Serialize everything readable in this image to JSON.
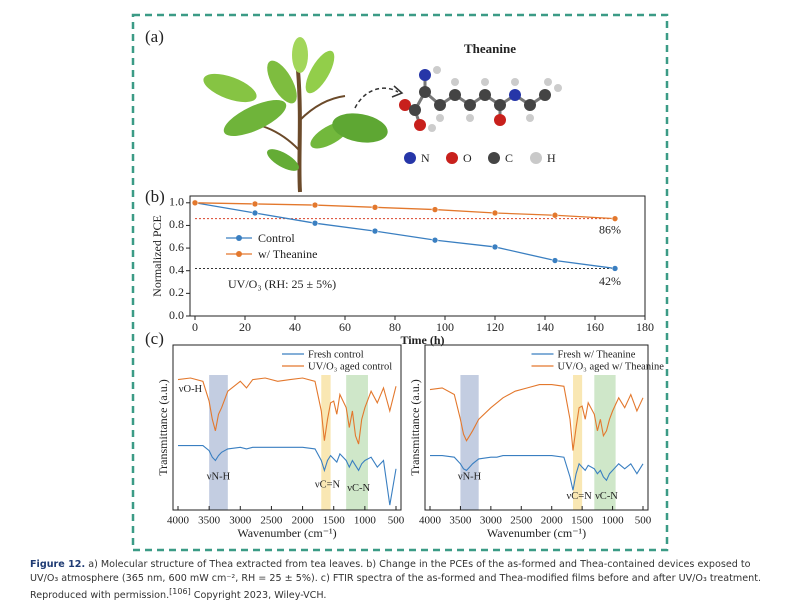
{
  "panel_a": {
    "label": "(a)",
    "molecule_title": "Theanine",
    "atom_legend": [
      {
        "symbol": "N",
        "color": "#2636a8"
      },
      {
        "symbol": "O",
        "color": "#c8201c"
      },
      {
        "symbol": "C",
        "color": "#444444"
      },
      {
        "symbol": "H",
        "color": "#c9c9c9"
      }
    ]
  },
  "chart_data": [
    {
      "type": "line",
      "panel_label": "(b)",
      "xlabel": "Time (h)",
      "ylabel": "Normalized PCE",
      "x": [
        0,
        24,
        48,
        72,
        96,
        120,
        144,
        168
      ],
      "series": [
        {
          "name": "Control",
          "color": "#3a7fc1",
          "values": [
            1.0,
            0.91,
            0.82,
            0.75,
            0.67,
            0.61,
            0.49,
            0.42
          ]
        },
        {
          "name": "w/ Theanine",
          "color": "#e3782d",
          "values": [
            1.0,
            0.99,
            0.98,
            0.96,
            0.94,
            0.91,
            0.89,
            0.86
          ]
        }
      ],
      "reference_lines": [
        {
          "value": 0.86,
          "label": "86%",
          "color": "#d9432b"
        },
        {
          "value": 0.42,
          "label": "42%",
          "color": "#333333"
        }
      ],
      "annotation": "UV/O₃ (RH: 25 ± 5%)",
      "xlim": [
        -2,
        180
      ],
      "xticks": [
        0,
        20,
        40,
        60,
        80,
        100,
        120,
        140,
        160,
        180
      ],
      "ylim": [
        0,
        1.06
      ],
      "yticks": [
        {
          "value": 0,
          "label": "0.0"
        },
        0.2,
        0.4,
        0.6,
        0.8,
        {
          "value": 1,
          "label": "1.0"
        }
      ]
    },
    {
      "type": "spectrum",
      "panel_label": "(c)",
      "xlabel": "Wavenumber (cm⁻¹)",
      "ylabel": "Transmittance (a.u.)",
      "x": [
        4000,
        3800,
        3600,
        3500,
        3450,
        3400,
        3350,
        3300,
        3200,
        3000,
        2900,
        2800,
        2600,
        2400,
        2200,
        2000,
        1800,
        1700,
        1650,
        1600,
        1550,
        1500,
        1450,
        1400,
        1300,
        1250,
        1200,
        1150,
        1100,
        1050,
        1000,
        900,
        800,
        700,
        600,
        500
      ],
      "series": [
        {
          "name": "Fresh control",
          "color": "#3a7fc1",
          "values": [
            0.39,
            0.39,
            0.39,
            0.36,
            0.32,
            0.3,
            0.33,
            0.35,
            0.37,
            0.38,
            0.37,
            0.38,
            0.38,
            0.38,
            0.38,
            0.38,
            0.37,
            0.3,
            0.24,
            0.3,
            0.33,
            0.31,
            0.29,
            0.34,
            0.3,
            0.26,
            0.3,
            0.27,
            0.24,
            0.28,
            0.3,
            0.32,
            0.26,
            0.3,
            0.03,
            0.25
          ]
        },
        {
          "name": "UV/O₃ aged control",
          "color": "#e3782d",
          "values": [
            0.79,
            0.8,
            0.78,
            0.66,
            0.55,
            0.48,
            0.58,
            0.62,
            0.72,
            0.78,
            0.74,
            0.79,
            0.8,
            0.78,
            0.79,
            0.8,
            0.78,
            0.6,
            0.42,
            0.55,
            0.65,
            0.66,
            0.58,
            0.7,
            0.62,
            0.5,
            0.6,
            0.45,
            0.4,
            0.55,
            0.62,
            0.72,
            0.65,
            0.74,
            0.6,
            0.75
          ]
        }
      ],
      "bands": [
        {
          "from": 3500,
          "to": 3200,
          "color": "#b9c4dc"
        },
        {
          "from": 1700,
          "to": 1550,
          "color": "#f8e3a6"
        },
        {
          "from": 1300,
          "to": 950,
          "color": "#c7e3c0"
        }
      ],
      "annotations": [
        {
          "text": "νO-H",
          "x": 3800,
          "y": 0.73
        },
        {
          "text": "νN-H",
          "x": 3350,
          "y": 0.2
        },
        {
          "text": "νC=N",
          "x": 1600,
          "y": 0.15
        },
        {
          "text": "νC-N",
          "x": 1100,
          "y": 0.13
        }
      ],
      "xlim": [
        4000,
        500
      ],
      "xticks": [
        4000,
        3500,
        3000,
        2500,
        2000,
        1500,
        1000,
        500
      ],
      "ylim": [
        0,
        1
      ]
    },
    {
      "type": "spectrum",
      "xlabel": "Wavenumber (cm⁻¹)",
      "ylabel": "Transmittance (a.u.)",
      "x": [
        4000,
        3800,
        3600,
        3500,
        3450,
        3400,
        3350,
        3300,
        3200,
        3000,
        2900,
        2800,
        2600,
        2400,
        2200,
        2000,
        1800,
        1700,
        1650,
        1600,
        1550,
        1500,
        1450,
        1400,
        1300,
        1250,
        1200,
        1150,
        1100,
        1050,
        1000,
        900,
        800,
        700,
        600,
        500
      ],
      "series": [
        {
          "name": "Fresh w/ Theanine",
          "color": "#3a7fc1",
          "values": [
            0.33,
            0.33,
            0.32,
            0.28,
            0.25,
            0.24,
            0.26,
            0.28,
            0.31,
            0.32,
            0.32,
            0.33,
            0.33,
            0.33,
            0.33,
            0.33,
            0.32,
            0.2,
            0.12,
            0.22,
            0.28,
            0.26,
            0.24,
            0.27,
            0.25,
            0.22,
            0.24,
            0.2,
            0.18,
            0.22,
            0.24,
            0.28,
            0.25,
            0.28,
            0.22,
            0.28
          ]
        },
        {
          "name": "UV/O₃ aged w/ Theanine",
          "color": "#e3782d",
          "values": [
            0.73,
            0.74,
            0.7,
            0.55,
            0.46,
            0.42,
            0.45,
            0.48,
            0.55,
            0.62,
            0.65,
            0.68,
            0.72,
            0.74,
            0.76,
            0.76,
            0.75,
            0.55,
            0.36,
            0.5,
            0.62,
            0.63,
            0.55,
            0.65,
            0.58,
            0.48,
            0.55,
            0.45,
            0.48,
            0.55,
            0.6,
            0.68,
            0.62,
            0.7,
            0.6,
            0.68
          ]
        }
      ],
      "bands": [
        {
          "from": 3500,
          "to": 3200,
          "color": "#b9c4dc"
        },
        {
          "from": 1650,
          "to": 1500,
          "color": "#f8e3a6"
        },
        {
          "from": 1300,
          "to": 950,
          "color": "#c7e3c0"
        }
      ],
      "annotations": [
        {
          "text": "νN-H",
          "x": 3350,
          "y": 0.2
        },
        {
          "text": "νC=N",
          "x": 1550,
          "y": 0.08
        },
        {
          "text": "νC-N",
          "x": 1100,
          "y": 0.08
        }
      ],
      "xlim": [
        4000,
        500
      ],
      "xticks": [
        4000,
        3500,
        3000,
        2500,
        2000,
        1500,
        1000,
        500
      ],
      "ylim": [
        0,
        1
      ]
    }
  ],
  "caption": {
    "label": "Figure 12.",
    "text": "a) Molecular structure of Thea extracted from tea leaves. b) Change in the PCEs of the as-formed and Thea-contained devices exposed to UV/O₃ atmosphere (365 nm, 600 mW cm⁻², RH = 25 ± 5%). c) FTIR spectra of the as-formed and Thea-modified films before and after UV/O₃ treatment. Reproduced with permission.",
    "ref": "[106]",
    "copyright": "Copyright 2023, Wiley-VCH."
  }
}
